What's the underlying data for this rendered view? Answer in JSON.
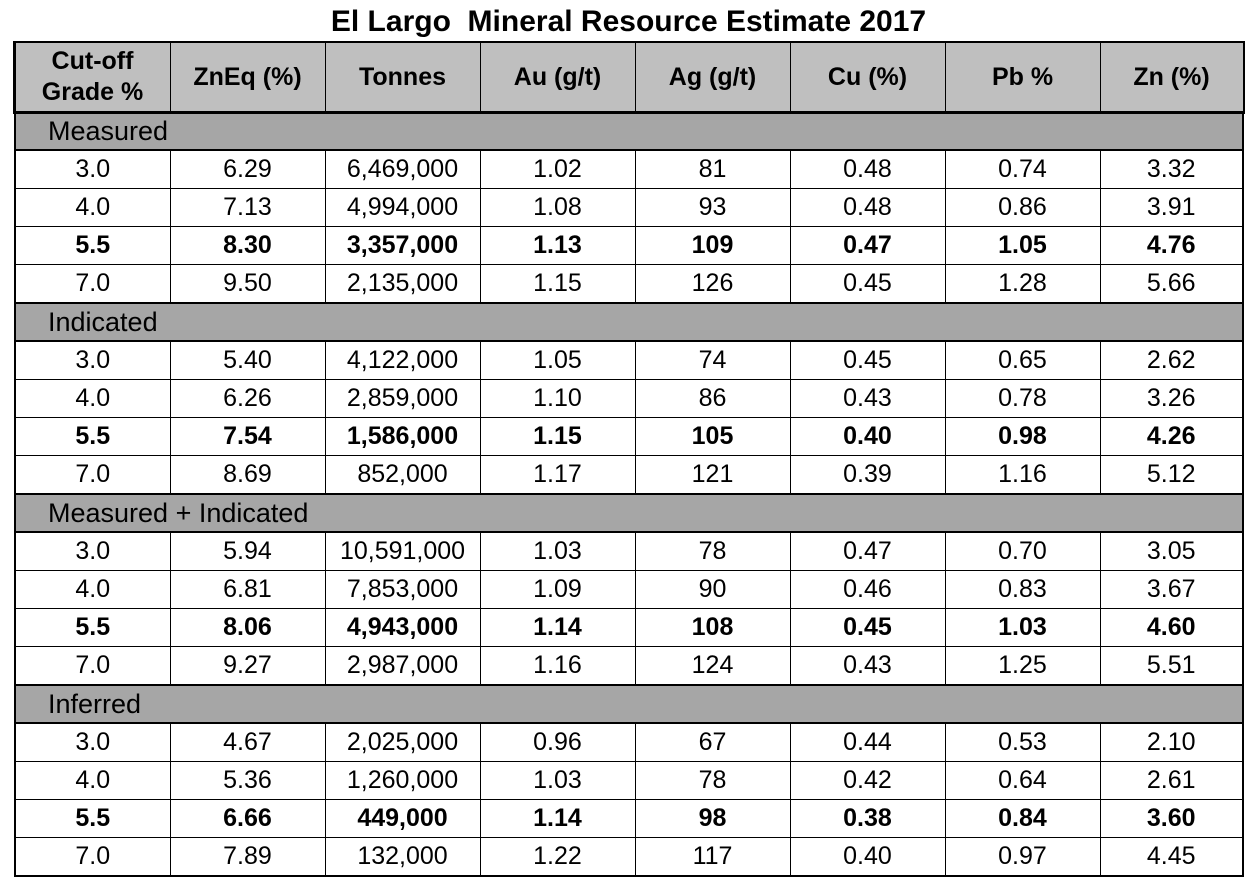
{
  "title": "El Largo  Mineral Resource Estimate 2017",
  "headers": [
    "Cut-off Grade %",
    "ZnEq (%)",
    "Tonnes",
    "Au (g/t)",
    "Ag (g/t)",
    "Cu (%)",
    "Pb %",
    "Zn (%)"
  ],
  "sections": [
    {
      "label": "Measured",
      "rows": [
        [
          "3.0",
          "6.29",
          "6,469,000",
          "1.02",
          "81",
          "0.48",
          "0.74",
          "3.32"
        ],
        [
          "4.0",
          "7.13",
          "4,994,000",
          "1.08",
          "93",
          "0.48",
          "0.86",
          "3.91"
        ],
        [
          "5.5",
          "8.30",
          "3,357,000",
          "1.13",
          "109",
          "0.47",
          "1.05",
          "4.76"
        ],
        [
          "7.0",
          "9.50",
          "2,135,000",
          "1.15",
          "126",
          "0.45",
          "1.28",
          "5.66"
        ]
      ]
    },
    {
      "label": "Indicated",
      "rows": [
        [
          "3.0",
          "5.40",
          "4,122,000",
          "1.05",
          "74",
          "0.45",
          "0.65",
          "2.62"
        ],
        [
          "4.0",
          "6.26",
          "2,859,000",
          "1.10",
          "86",
          "0.43",
          "0.78",
          "3.26"
        ],
        [
          "5.5",
          "7.54",
          "1,586,000",
          "1.15",
          "105",
          "0.40",
          "0.98",
          "4.26"
        ],
        [
          "7.0",
          "8.69",
          "852,000",
          "1.17",
          "121",
          "0.39",
          "1.16",
          "5.12"
        ]
      ]
    },
    {
      "label": "Measured + Indicated",
      "rows": [
        [
          "3.0",
          "5.94",
          "10,591,000",
          "1.03",
          "78",
          "0.47",
          "0.70",
          "3.05"
        ],
        [
          "4.0",
          "6.81",
          "7,853,000",
          "1.09",
          "90",
          "0.46",
          "0.83",
          "3.67"
        ],
        [
          "5.5",
          "8.06",
          "4,943,000",
          "1.14",
          "108",
          "0.45",
          "1.03",
          "4.60"
        ],
        [
          "7.0",
          "9.27",
          "2,987,000",
          "1.16",
          "124",
          "0.43",
          "1.25",
          "5.51"
        ]
      ]
    },
    {
      "label": "Inferred",
      "rows": [
        [
          "3.0",
          "4.67",
          "2,025,000",
          "0.96",
          "67",
          "0.44",
          "0.53",
          "2.10"
        ],
        [
          "4.0",
          "5.36",
          "1,260,000",
          "1.03",
          "78",
          "0.42",
          "0.64",
          "2.61"
        ],
        [
          "5.5",
          "6.66",
          "449,000",
          "1.14",
          "98",
          "0.38",
          "0.84",
          "3.60"
        ],
        [
          "7.0",
          "7.89",
          "132,000",
          "1.22",
          "117",
          "0.40",
          "0.97",
          "4.45"
        ]
      ]
    }
  ],
  "highlight_cutoff": "5.5",
  "colors": {
    "header_bg": "#bfbfbf",
    "section_bg": "#a6a6a6",
    "border": "#000000"
  }
}
